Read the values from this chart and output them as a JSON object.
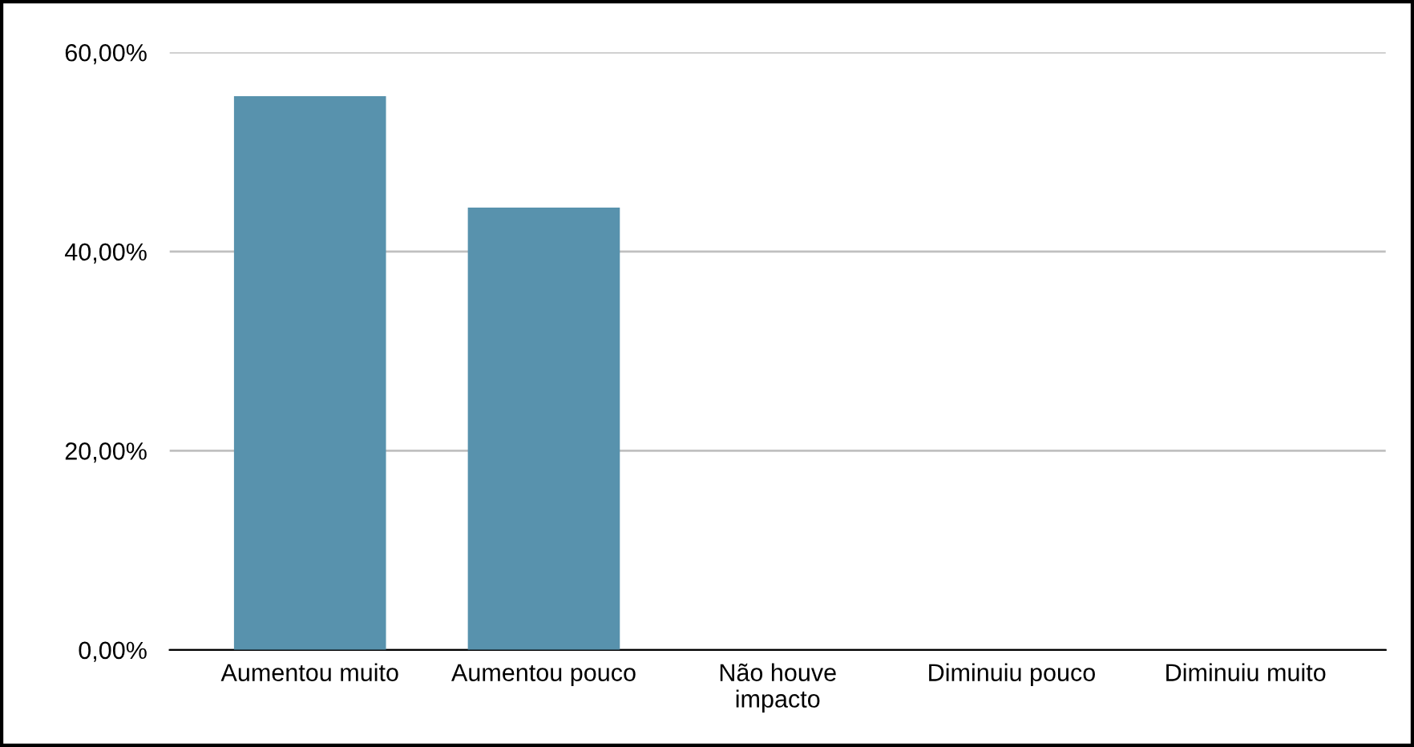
{
  "chart_data": {
    "type": "bar",
    "categories": [
      "Aumentou muito",
      "Aumentou pouco",
      "Não houve impacto",
      "Diminuiu pouco",
      "Diminuiu muito"
    ],
    "values": [
      55.6,
      44.4,
      0,
      0,
      0
    ],
    "color": "#5892ad",
    "ylim": [
      0,
      60
    ],
    "yticks": [
      {
        "value": 0,
        "label": "0,00%"
      },
      {
        "value": 20,
        "label": "20,00%"
      },
      {
        "value": 40,
        "label": "40,00%"
      },
      {
        "value": 60,
        "label": "60,00%"
      }
    ],
    "grid": "y",
    "legend": false
  }
}
